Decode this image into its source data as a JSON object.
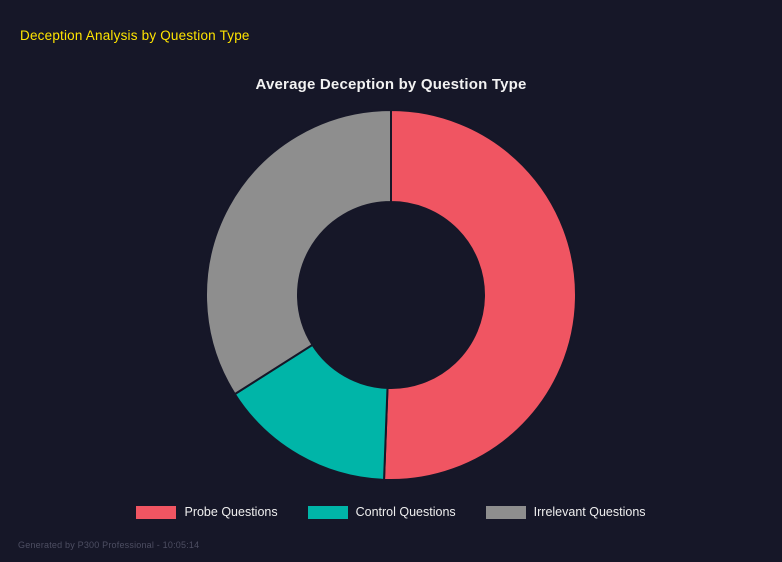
{
  "page": {
    "header": "Deception Analysis by Question Type",
    "footer": "Generated by P300 Professional - 10:05:14"
  },
  "colors": {
    "background": "#161728",
    "header_text": "#ffe400",
    "title_text": "#f2f2f2",
    "legend_label_text": "#eeeeee",
    "footer_text": "#4d4e62"
  },
  "chart_data": {
    "type": "pie",
    "subtype": "doughnut",
    "title": "Average Deception by Question Type",
    "categories": [
      "Probe Questions",
      "Control Questions",
      "Irrelevant Questions"
    ],
    "values": [
      50.6,
      15.4,
      34.0
    ],
    "unit": "percent-share",
    "colors": [
      "#f05562",
      "#00b5a8",
      "#8e8e8e"
    ],
    "start_angle_deg": 0,
    "direction": "clockwise",
    "hole_ratio": 0.5,
    "segment_border_width": 2,
    "legend_position": "bottom",
    "grid": false
  }
}
